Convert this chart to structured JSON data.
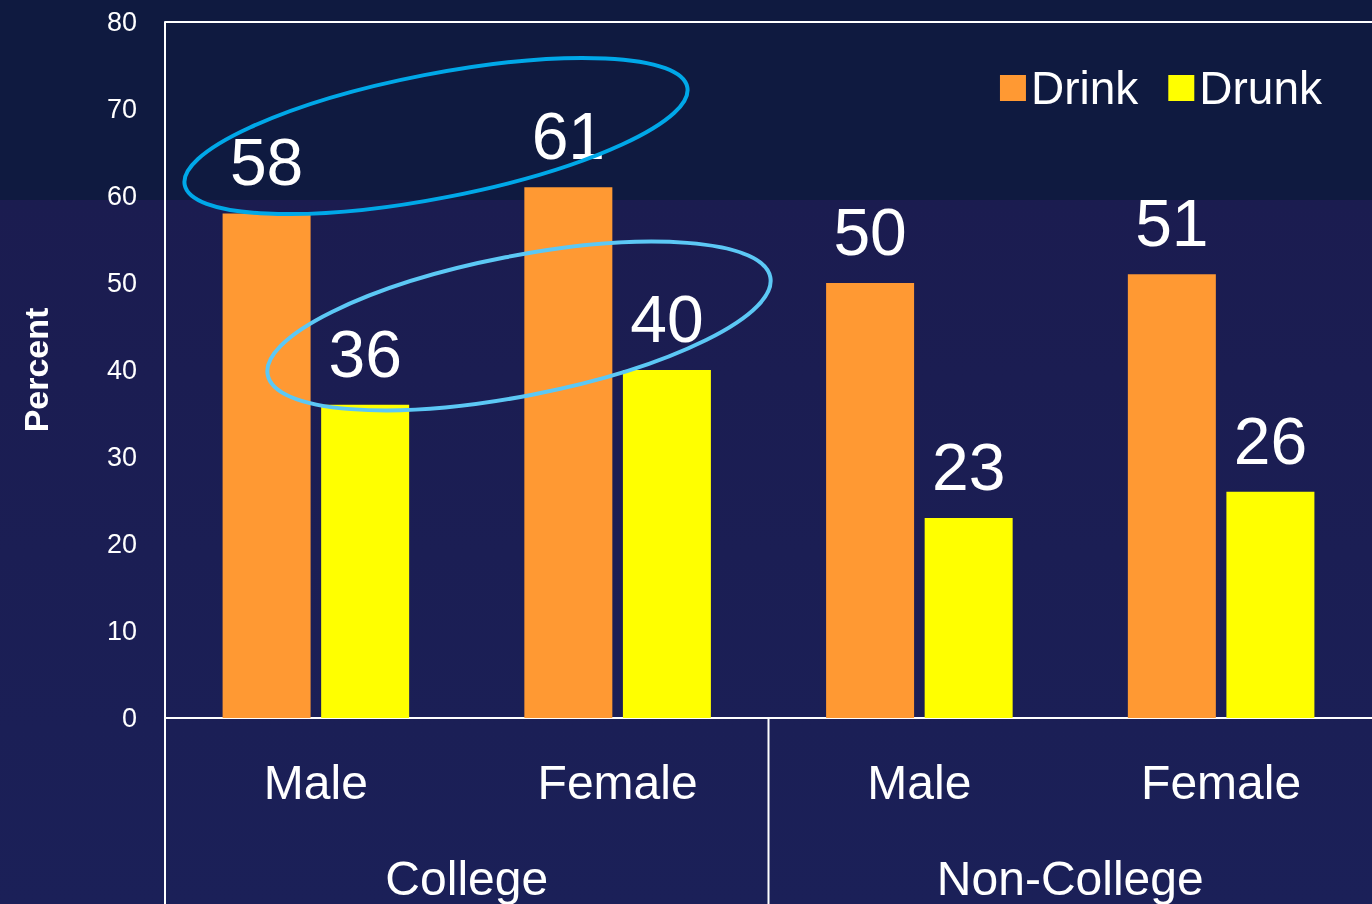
{
  "chart_data": {
    "type": "bar",
    "ylabel": "Percent",
    "categories": [
      "Male",
      "Female",
      "Male",
      "Female"
    ],
    "annotations": [
      "College",
      "Non-College"
    ],
    "series": [
      {
        "name": "Drink",
        "color": "#ff9933",
        "values": [
          58,
          61,
          50,
          51
        ]
      },
      {
        "name": "Drunk",
        "color": "#ffff00",
        "values": [
          36,
          40,
          23,
          26
        ]
      }
    ],
    "ylim": [
      0,
      80
    ],
    "yticks": [
      0,
      10,
      20,
      30,
      40,
      50,
      60,
      70,
      80
    ],
    "data_labels": true,
    "legend": "top right",
    "grid": false
  }
}
